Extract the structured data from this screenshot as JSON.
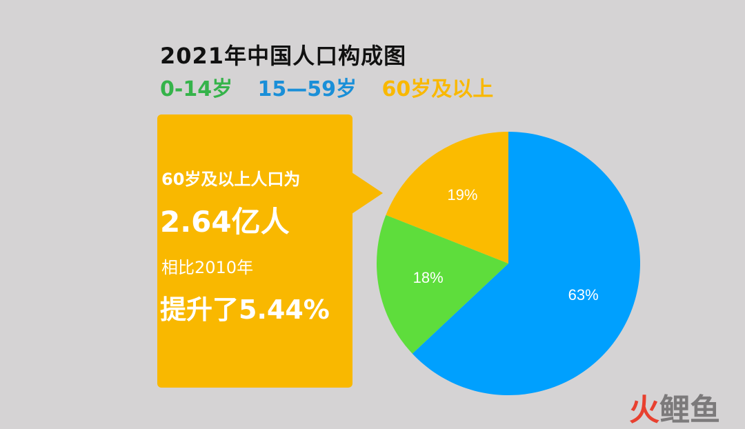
{
  "title": "2021年中国人口构成图",
  "legend": [
    {
      "label": "0-14岁",
      "color": "#35b34a"
    },
    {
      "label": "15—59岁",
      "color": "#1a8fd8"
    },
    {
      "label": "60岁及以上",
      "color": "#f9b800"
    }
  ],
  "callout": {
    "line1": "60岁及以上人口为",
    "line2": "2.64亿人",
    "line3": "相比2010年",
    "line4": "提升了5.44%"
  },
  "chart_data": {
    "type": "pie",
    "title": "2021年中国人口构成图",
    "slices": [
      {
        "label": "15—59岁",
        "value": 63,
        "display": "63%",
        "color": "#00a0fe"
      },
      {
        "label": "0-14岁",
        "value": 18,
        "display": "18%",
        "color": "#5edd3c"
      },
      {
        "label": "60岁及以上",
        "value": 19,
        "display": "19%",
        "color": "#fbbb00"
      }
    ],
    "start_angle_deg": 0,
    "direction": "clockwise",
    "legend_position": "top"
  },
  "watermark": {
    "part1": "火",
    "part2": "鲤鱼"
  }
}
